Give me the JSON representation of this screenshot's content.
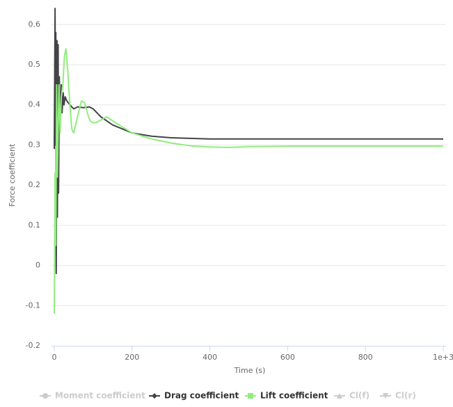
{
  "chart_data": {
    "type": "line",
    "x_label": "Time (s)",
    "y_label": "Force coefficient",
    "xlim": [
      0,
      1000
    ],
    "ylim": [
      -0.2,
      0.65
    ],
    "xticks": [
      0,
      200,
      400,
      600,
      800,
      {
        "value": 1000,
        "label": "1e+3"
      }
    ],
    "yticks": [
      -0.2,
      -0.1,
      0,
      0.1,
      0.2,
      0.3,
      0.4,
      0.5,
      0.6
    ],
    "grid": true,
    "legend": "bottom",
    "series": [
      {
        "name": "Moment coefficient",
        "visible": false,
        "marker": "circle"
      },
      {
        "name": "Drag coefficient",
        "visible": true,
        "marker": "diamond",
        "color": "#434348",
        "x": [
          0,
          2,
          3,
          4,
          5,
          7,
          8,
          10,
          11,
          13,
          15,
          18,
          20,
          23,
          25,
          28,
          32,
          40,
          50,
          60,
          75,
          90,
          100,
          120,
          150,
          200,
          250,
          300,
          400,
          600,
          800,
          1000
        ],
        "values": [
          0.29,
          0.64,
          0.3,
          0.58,
          -0.02,
          0.56,
          0.12,
          0.55,
          0.18,
          0.47,
          0.35,
          0.45,
          0.38,
          0.43,
          0.4,
          0.42,
          0.41,
          0.4,
          0.39,
          0.395,
          0.393,
          0.395,
          0.39,
          0.37,
          0.35,
          0.33,
          0.322,
          0.318,
          0.315,
          0.315,
          0.315,
          0.315
        ]
      },
      {
        "name": "Lift coefficient",
        "visible": true,
        "marker": "square",
        "color": "#90ed7d",
        "x": [
          0,
          2,
          4,
          6,
          8,
          10,
          12,
          15,
          18,
          22,
          26,
          30,
          35,
          40,
          45,
          50,
          55,
          62,
          70,
          78,
          85,
          92,
          100,
          110,
          125,
          135,
          150,
          175,
          200,
          250,
          300,
          350,
          400,
          450,
          500,
          600,
          800,
          1000
        ],
        "values": [
          -0.12,
          0.23,
          0.05,
          0.45,
          0.22,
          0.34,
          0.45,
          0.33,
          0.42,
          0.45,
          0.52,
          0.54,
          0.48,
          0.4,
          0.34,
          0.33,
          0.35,
          0.38,
          0.41,
          0.405,
          0.38,
          0.36,
          0.355,
          0.357,
          0.365,
          0.37,
          0.36,
          0.345,
          0.33,
          0.315,
          0.305,
          0.298,
          0.295,
          0.294,
          0.296,
          0.297,
          0.297,
          0.297
        ]
      },
      {
        "name": "Cl(f)",
        "visible": false,
        "marker": "triangle"
      },
      {
        "name": "Cl(r)",
        "visible": false,
        "marker": "triangle-down"
      }
    ]
  }
}
